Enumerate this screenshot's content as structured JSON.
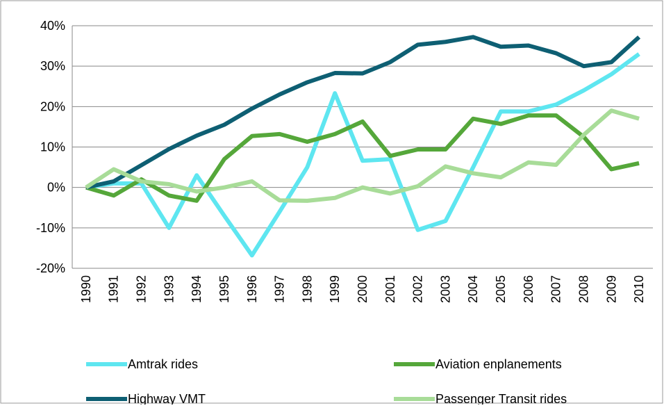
{
  "chart_data": {
    "type": "line",
    "categories": [
      "1990",
      "1991",
      "1992",
      "1993",
      "1994",
      "1995",
      "1996",
      "1997",
      "1998",
      "1999",
      "2000",
      "2001",
      "2002",
      "2003",
      "2004",
      "2005",
      "2006",
      "2007",
      "2008",
      "2009",
      "2010"
    ],
    "series": [
      {
        "name": "Amtrak rides",
        "color": "#5ee6f0",
        "values": [
          0,
          1,
          1,
          -10,
          3,
          -7,
          -16.8,
          -6,
          5,
          23.3,
          6.6,
          7,
          -10.5,
          -8.3,
          5,
          18.8,
          18.8,
          20.5,
          24,
          28,
          33
        ]
      },
      {
        "name": "Aviation enplanements",
        "color": "#55a73a",
        "values": [
          0,
          -2,
          2,
          -2,
          -3.3,
          7,
          12.7,
          13.2,
          11.3,
          13.2,
          16.3,
          7.8,
          9.4,
          9.4,
          17,
          15.7,
          17.8,
          17.8,
          12.5,
          4.5,
          6
        ]
      },
      {
        "name": "Highway VMT",
        "color": "#0e5f73",
        "values": [
          0,
          1.5,
          5.5,
          9.5,
          12.8,
          15.5,
          19.5,
          23,
          26,
          28.3,
          28.2,
          31,
          35.3,
          36,
          37.2,
          34.8,
          35.1,
          33.2,
          30,
          31,
          37.2
        ]
      },
      {
        "name": "Passenger Transit rides",
        "color": "#a8dc98",
        "values": [
          0,
          4.5,
          1.5,
          0.8,
          -1,
          0,
          1.5,
          -3.2,
          -3.3,
          -2.6,
          0,
          -1.5,
          0.3,
          5.2,
          3.5,
          2.5,
          6.2,
          5.6,
          13,
          19,
          17
        ]
      }
    ],
    "ylim": [
      -20,
      40
    ],
    "yticks": [
      {
        "value": -20,
        "label": "-20%"
      },
      {
        "value": -10,
        "label": "-10%"
      },
      {
        "value": 0,
        "label": "0%"
      },
      {
        "value": 10,
        "label": "10%"
      },
      {
        "value": 20,
        "label": "20%"
      },
      {
        "value": 30,
        "label": "30%"
      },
      {
        "value": 40,
        "label": "40%"
      }
    ],
    "grid": true,
    "legend": "bottom"
  }
}
